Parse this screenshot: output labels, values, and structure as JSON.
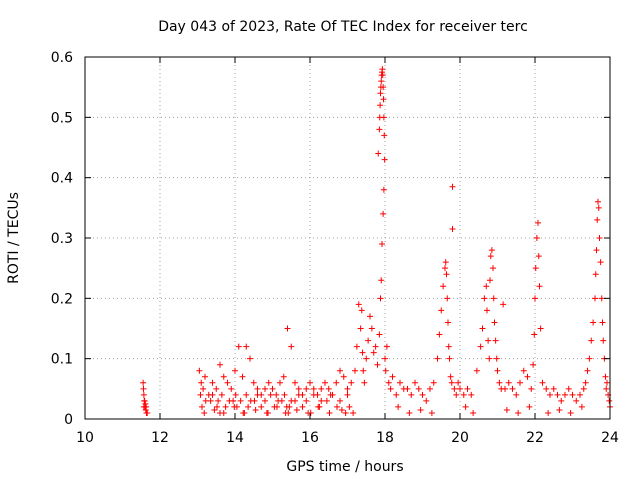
{
  "chart_data": {
    "type": "scatter",
    "title": "Day 043 of 2023, Rate Of TEC Index for receiver terc",
    "xlabel": "GPS time / hours",
    "ylabel": "ROTI / TECUs",
    "xlim": [
      10,
      24
    ],
    "ylim": [
      0,
      0.6
    ],
    "x_ticks": [
      10,
      12,
      14,
      16,
      18,
      20,
      22,
      24
    ],
    "y_ticks": [
      0,
      0.1,
      0.2,
      0.3,
      0.4,
      0.5,
      0.6
    ],
    "x_tick_labels": [
      "10",
      "12",
      "14",
      "16",
      "18",
      "20",
      "22",
      "24"
    ],
    "y_tick_labels": [
      "0",
      "0.1",
      "0.2",
      "0.3",
      "0.4",
      "0.5",
      "0.6"
    ],
    "grid": true,
    "marker": "plus",
    "color": "#ff0000",
    "series": [
      {
        "x": [
          11.55,
          11.56,
          11.57,
          11.58,
          11.6,
          11.62,
          11.64,
          11.66,
          11.57,
          11.59,
          11.61,
          11.63,
          13.05,
          13.1,
          13.15,
          13.2,
          13.3,
          13.4,
          13.5,
          13.6,
          13.7,
          13.8,
          13.9,
          14.0,
          14.1,
          14.2,
          14.3,
          14.4,
          14.5,
          14.6,
          14.7,
          14.8,
          14.9,
          15.0,
          15.1,
          15.2,
          15.3,
          15.4,
          15.5,
          15.6,
          15.7,
          15.8,
          15.9,
          16.0,
          16.1,
          16.2,
          16.3,
          16.4,
          16.5,
          16.6,
          16.7,
          16.8,
          16.9,
          17.0,
          17.1,
          17.2,
          13.12,
          13.35,
          13.52,
          13.6,
          13.75,
          13.95,
          14.05,
          14.22,
          14.35,
          14.52,
          14.7,
          14.88,
          15.05,
          15.25,
          15.38,
          15.42,
          15.45,
          15.6,
          15.8,
          16.02,
          16.25,
          16.45,
          16.72,
          16.95,
          17.05,
          13.08,
          13.22,
          13.4,
          13.55,
          13.65,
          13.85,
          14.02,
          14.15,
          14.3,
          14.42,
          14.6,
          14.8,
          14.95,
          15.15,
          15.32,
          15.5,
          15.7,
          15.9,
          16.1,
          16.3,
          16.55,
          16.8,
          17.0,
          17.25,
          17.3,
          17.35,
          17.38,
          17.4,
          17.42,
          17.45,
          17.5,
          17.55,
          17.6,
          17.65,
          17.7,
          17.75,
          17.8,
          17.85,
          17.88,
          17.9,
          17.92,
          17.95,
          17.97,
          18.0,
          18.02,
          18.05,
          18.1,
          18.15,
          18.2,
          18.3,
          18.4,
          18.5,
          17.82,
          17.85,
          17.86,
          17.87,
          17.88,
          17.89,
          17.9,
          17.91,
          17.92,
          17.93,
          17.94,
          17.95,
          17.96,
          17.97,
          17.98,
          17.99,
          18.6,
          18.7,
          18.8,
          18.9,
          19.0,
          19.1,
          19.2,
          19.3,
          19.4,
          19.45,
          19.5,
          19.55,
          19.6,
          19.62,
          19.64,
          19.66,
          19.68,
          19.7,
          19.72,
          19.75,
          19.78,
          19.8,
          19.85,
          19.9,
          19.95,
          20.0,
          20.1,
          20.2,
          20.3,
          19.8,
          20.45,
          20.55,
          20.6,
          20.65,
          20.7,
          20.72,
          20.75,
          20.78,
          20.8,
          20.82,
          20.85,
          20.88,
          20.9,
          20.92,
          20.95,
          20.98,
          21.0,
          21.05,
          21.1,
          21.15,
          21.2,
          21.3,
          21.4,
          21.5,
          21.6,
          21.7,
          21.8,
          21.9,
          21.95,
          21.98,
          22.0,
          22.02,
          22.05,
          22.08,
          22.1,
          22.12,
          22.15,
          22.2,
          22.3,
          22.4,
          22.5,
          22.6,
          22.7,
          22.8,
          22.9,
          23.0,
          23.1,
          23.2,
          23.3,
          23.35,
          23.4,
          23.45,
          23.5,
          23.55,
          23.6,
          23.62,
          23.64,
          23.66,
          23.68,
          23.7,
          23.72,
          23.75,
          23.78,
          23.8,
          23.82,
          23.85,
          23.88,
          23.9,
          23.92,
          23.95,
          23.98,
          24.0,
          13.18,
          13.45,
          13.7,
          13.98,
          14.25,
          14.55,
          14.85,
          15.12,
          15.35,
          15.65,
          15.95,
          16.22,
          16.52,
          16.85,
          17.15,
          18.35,
          18.65,
          18.95,
          19.25,
          20.15,
          20.35,
          21.25,
          21.55,
          21.85,
          22.35,
          22.65,
          22.95,
          23.25
        ],
        "y": [
          0.06,
          0.05,
          0.04,
          0.03,
          0.02,
          0.015,
          0.01,
          0.01,
          0.02,
          0.03,
          0.025,
          0.02,
          0.08,
          0.06,
          0.05,
          0.07,
          0.04,
          0.06,
          0.05,
          0.09,
          0.07,
          0.06,
          0.05,
          0.08,
          0.12,
          0.07,
          0.12,
          0.1,
          0.06,
          0.05,
          0.04,
          0.05,
          0.06,
          0.05,
          0.04,
          0.06,
          0.07,
          0.15,
          0.12,
          0.06,
          0.05,
          0.04,
          0.05,
          0.06,
          0.05,
          0.04,
          0.05,
          0.06,
          0.05,
          0.04,
          0.06,
          0.08,
          0.07,
          0.05,
          0.06,
          0.08,
          0.02,
          0.03,
          0.02,
          0.01,
          0.02,
          0.03,
          0.02,
          0.01,
          0.02,
          0.03,
          0.02,
          0.01,
          0.02,
          0.03,
          0.02,
          0.01,
          0.02,
          0.03,
          0.02,
          0.01,
          0.02,
          0.03,
          0.02,
          0.01,
          0.02,
          0.04,
          0.03,
          0.04,
          0.03,
          0.04,
          0.03,
          0.04,
          0.03,
          0.04,
          0.03,
          0.04,
          0.03,
          0.04,
          0.03,
          0.04,
          0.03,
          0.04,
          0.03,
          0.04,
          0.03,
          0.04,
          0.03,
          0.04,
          0.12,
          0.19,
          0.15,
          0.18,
          0.11,
          0.08,
          0.06,
          0.1,
          0.13,
          0.17,
          0.15,
          0.11,
          0.12,
          0.09,
          0.14,
          0.2,
          0.23,
          0.29,
          0.34,
          0.38,
          0.1,
          0.08,
          0.12,
          0.06,
          0.05,
          0.07,
          0.04,
          0.06,
          0.05,
          0.44,
          0.48,
          0.5,
          0.52,
          0.54,
          0.55,
          0.56,
          0.57,
          0.575,
          0.58,
          0.57,
          0.55,
          0.53,
          0.5,
          0.47,
          0.43,
          0.05,
          0.04,
          0.06,
          0.05,
          0.04,
          0.03,
          0.05,
          0.06,
          0.1,
          0.14,
          0.18,
          0.22,
          0.25,
          0.26,
          0.24,
          0.2,
          0.16,
          0.12,
          0.1,
          0.07,
          0.06,
          0.385,
          0.05,
          0.04,
          0.06,
          0.05,
          0.04,
          0.05,
          0.04,
          0.315,
          0.08,
          0.12,
          0.15,
          0.2,
          0.22,
          0.18,
          0.13,
          0.1,
          0.23,
          0.27,
          0.28,
          0.25,
          0.2,
          0.16,
          0.13,
          0.1,
          0.08,
          0.06,
          0.05,
          0.19,
          0.05,
          0.06,
          0.05,
          0.04,
          0.06,
          0.08,
          0.07,
          0.05,
          0.09,
          0.14,
          0.2,
          0.25,
          0.3,
          0.325,
          0.27,
          0.22,
          0.15,
          0.06,
          0.05,
          0.04,
          0.05,
          0.04,
          0.03,
          0.04,
          0.05,
          0.04,
          0.03,
          0.04,
          0.05,
          0.06,
          0.08,
          0.1,
          0.13,
          0.16,
          0.2,
          0.24,
          0.28,
          0.33,
          0.36,
          0.35,
          0.3,
          0.26,
          0.2,
          0.16,
          0.13,
          0.1,
          0.07,
          0.05,
          0.06,
          0.04,
          0.03,
          0.02,
          0.01,
          0.015,
          0.01,
          0.02,
          0.01,
          0.015,
          0.01,
          0.02,
          0.01,
          0.015,
          0.01,
          0.02,
          0.01,
          0.015,
          0.01,
          0.02,
          0.01,
          0.015,
          0.01,
          0.02,
          0.01,
          0.015,
          0.01,
          0.02,
          0.01,
          0.015,
          0.01,
          0.02
        ]
      }
    ]
  }
}
